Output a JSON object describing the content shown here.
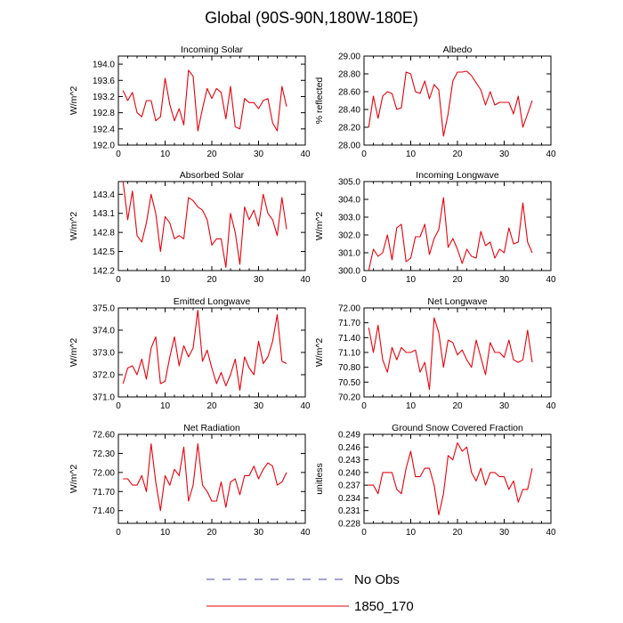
{
  "figure": {
    "title": "Global (90S-90N,180W-180E)",
    "line_color": "#e8000b",
    "obs_color": "#4a4aa8"
  },
  "legend": {
    "entries": [
      {
        "label": "No Obs",
        "style": "dashed",
        "color": "#4a4aa8"
      },
      {
        "label": "1850_170",
        "style": "solid",
        "color": "#e8000b"
      }
    ]
  },
  "chart_data": [
    {
      "type": "line",
      "title": "Incoming Solar",
      "ylabel": "W/m^2",
      "xlim": [
        0,
        40
      ],
      "xticks": [
        0,
        10,
        20,
        30,
        40
      ],
      "ylim": [
        192.0,
        194.2
      ],
      "yticks": [
        "192.0",
        "192.4",
        "192.8",
        "193.2",
        "193.6",
        "194.0"
      ],
      "series": [
        {
          "name": "1850_170",
          "x": [
            1,
            2,
            3,
            4,
            5,
            6,
            7,
            8,
            9,
            10,
            11,
            12,
            13,
            14,
            15,
            16,
            17,
            18,
            19,
            20,
            21,
            22,
            23,
            24,
            25,
            26,
            27,
            28,
            29,
            30,
            31,
            32,
            33,
            34,
            35,
            36
          ],
          "y": [
            193.35,
            193.1,
            193.3,
            192.8,
            192.7,
            193.1,
            193.1,
            192.6,
            192.7,
            193.65,
            193.0,
            192.6,
            192.9,
            192.5,
            193.85,
            193.7,
            192.35,
            192.9,
            193.4,
            193.15,
            193.4,
            193.3,
            192.65,
            193.45,
            192.45,
            192.4,
            193.15,
            193.05,
            193.05,
            192.9,
            193.1,
            193.15,
            192.55,
            192.35,
            193.45,
            192.95
          ]
        }
      ]
    },
    {
      "type": "line",
      "title": "Albedo",
      "ylabel": "% reflected",
      "xlim": [
        0,
        40
      ],
      "xticks": [
        0,
        10,
        20,
        30,
        40
      ],
      "ylim": [
        28.0,
        29.0
      ],
      "yticks": [
        "28.00",
        "28.20",
        "28.40",
        "28.60",
        "28.80",
        "29.00"
      ],
      "series": [
        {
          "name": "1850_170",
          "x": [
            1,
            2,
            3,
            4,
            5,
            6,
            7,
            8,
            9,
            10,
            11,
            12,
            13,
            14,
            15,
            16,
            17,
            18,
            19,
            20,
            21,
            22,
            23,
            24,
            25,
            26,
            27,
            28,
            29,
            30,
            31,
            32,
            33,
            34,
            35,
            36
          ],
          "y": [
            28.2,
            28.55,
            28.3,
            28.55,
            28.6,
            28.58,
            28.4,
            28.42,
            28.82,
            28.8,
            28.6,
            28.58,
            28.72,
            28.52,
            28.68,
            28.62,
            28.1,
            28.35,
            28.72,
            28.82,
            28.82,
            28.83,
            28.78,
            28.7,
            28.62,
            28.45,
            28.6,
            28.45,
            28.48,
            28.48,
            28.48,
            28.35,
            28.55,
            28.2,
            28.35,
            28.5
          ]
        }
      ]
    },
    {
      "type": "line",
      "title": "Absorbed Solar",
      "ylabel": "W/m^2",
      "xlim": [
        0,
        40
      ],
      "xticks": [
        0,
        10,
        20,
        30,
        40
      ],
      "ylim": [
        142.2,
        143.6
      ],
      "yticks": [
        "142.2",
        "142.5",
        "142.8",
        "143.1",
        "143.4"
      ],
      "series": [
        {
          "name": "1850_170",
          "x": [
            1,
            2,
            3,
            4,
            5,
            6,
            7,
            8,
            9,
            10,
            11,
            12,
            13,
            14,
            15,
            16,
            17,
            18,
            19,
            20,
            21,
            22,
            23,
            24,
            25,
            26,
            27,
            28,
            29,
            30,
            31,
            32,
            33,
            34,
            35,
            36
          ],
          "y": [
            143.6,
            143.0,
            143.45,
            142.75,
            142.65,
            142.95,
            143.4,
            143.1,
            142.5,
            143.05,
            142.95,
            142.7,
            142.75,
            142.7,
            143.35,
            143.3,
            143.2,
            143.15,
            143.0,
            142.6,
            142.7,
            142.7,
            142.25,
            143.1,
            142.8,
            142.3,
            143.2,
            143.0,
            143.15,
            142.9,
            143.4,
            143.1,
            143.0,
            142.75,
            143.35,
            142.85
          ]
        }
      ]
    },
    {
      "type": "line",
      "title": "Incoming Longwave",
      "ylabel": "W/m^2",
      "xlim": [
        0,
        40
      ],
      "xticks": [
        0,
        10,
        20,
        30,
        40
      ],
      "ylim": [
        300.0,
        305.0
      ],
      "yticks": [
        "300.0",
        "301.0",
        "302.0",
        "303.0",
        "304.0",
        "305.0"
      ],
      "series": [
        {
          "name": "1850_170",
          "x": [
            1,
            2,
            3,
            4,
            5,
            6,
            7,
            8,
            9,
            10,
            11,
            12,
            13,
            14,
            15,
            16,
            17,
            18,
            19,
            20,
            21,
            22,
            23,
            24,
            25,
            26,
            27,
            28,
            29,
            30,
            31,
            32,
            33,
            34,
            35,
            36
          ],
          "y": [
            300.0,
            301.2,
            300.8,
            301.0,
            302.0,
            300.6,
            302.4,
            302.6,
            300.5,
            300.7,
            301.9,
            301.9,
            302.6,
            300.9,
            301.8,
            302.3,
            304.1,
            301.3,
            301.8,
            301.2,
            300.4,
            301.2,
            300.8,
            300.7,
            302.2,
            301.4,
            301.6,
            300.7,
            301.2,
            301.0,
            302.4,
            301.5,
            301.6,
            303.8,
            301.6,
            301.0
          ]
        }
      ]
    },
    {
      "type": "line",
      "title": "Emitted Longwave",
      "ylabel": "W/m^2",
      "xlim": [
        0,
        40
      ],
      "xticks": [
        0,
        10,
        20,
        30,
        40
      ],
      "ylim": [
        371.0,
        375.0
      ],
      "yticks": [
        "371.0",
        "372.0",
        "373.0",
        "374.0",
        "375.0"
      ],
      "series": [
        {
          "name": "1850_170",
          "x": [
            1,
            2,
            3,
            4,
            5,
            6,
            7,
            8,
            9,
            10,
            11,
            12,
            13,
            14,
            15,
            16,
            17,
            18,
            19,
            20,
            21,
            22,
            23,
            24,
            25,
            26,
            27,
            28,
            29,
            30,
            31,
            32,
            33,
            34,
            35,
            36
          ],
          "y": [
            371.6,
            372.3,
            372.4,
            372.0,
            372.7,
            371.8,
            373.2,
            373.7,
            371.6,
            371.7,
            372.8,
            373.7,
            372.4,
            373.3,
            372.8,
            373.2,
            374.9,
            372.6,
            373.1,
            372.3,
            371.6,
            372.1,
            371.5,
            372.0,
            372.7,
            371.3,
            372.8,
            372.3,
            372.0,
            373.5,
            372.5,
            372.8,
            373.5,
            374.7,
            372.6,
            372.5
          ]
        }
      ]
    },
    {
      "type": "line",
      "title": "Net Longwave",
      "ylabel": "W/m^2",
      "xlim": [
        0,
        40
      ],
      "xticks": [
        0,
        10,
        20,
        30,
        40
      ],
      "ylim": [
        70.2,
        72.0
      ],
      "yticks": [
        "70.20",
        "70.50",
        "70.80",
        "71.10",
        "71.40",
        "71.70",
        "72.00"
      ],
      "series": [
        {
          "name": "1850_170",
          "x": [
            1,
            2,
            3,
            4,
            5,
            6,
            7,
            8,
            9,
            10,
            11,
            12,
            13,
            14,
            15,
            16,
            17,
            18,
            19,
            20,
            21,
            22,
            23,
            24,
            25,
            26,
            27,
            28,
            29,
            30,
            31,
            32,
            33,
            34,
            35,
            36
          ],
          "y": [
            71.6,
            71.1,
            71.65,
            70.95,
            70.7,
            71.2,
            70.95,
            71.2,
            71.1,
            71.1,
            71.15,
            70.7,
            70.9,
            70.35,
            71.8,
            71.5,
            70.8,
            71.35,
            71.3,
            71.05,
            71.15,
            70.95,
            70.8,
            71.35,
            71.0,
            70.65,
            71.3,
            71.1,
            71.1,
            71.0,
            71.35,
            70.95,
            70.9,
            70.95,
            71.55,
            70.9
          ]
        }
      ]
    },
    {
      "type": "line",
      "title": "Net Radiation",
      "ylabel": "W/m^2",
      "xlim": [
        0,
        40
      ],
      "xticks": [
        0,
        10,
        20,
        30,
        40
      ],
      "ylim": [
        71.2,
        72.6
      ],
      "yticks": [
        "71.40",
        "71.70",
        "72.00",
        "72.30",
        "72.60"
      ],
      "series": [
        {
          "name": "1850_170",
          "x": [
            1,
            2,
            3,
            4,
            5,
            6,
            7,
            8,
            9,
            10,
            11,
            12,
            13,
            14,
            15,
            16,
            17,
            18,
            19,
            20,
            21,
            22,
            23,
            24,
            25,
            26,
            27,
            28,
            29,
            30,
            31,
            32,
            33,
            34,
            35,
            36
          ],
          "y": [
            71.9,
            71.9,
            71.8,
            71.8,
            71.95,
            71.7,
            72.45,
            71.85,
            71.4,
            71.95,
            71.8,
            72.05,
            71.95,
            72.4,
            71.55,
            71.8,
            72.45,
            71.8,
            71.7,
            71.55,
            71.55,
            71.85,
            71.45,
            71.85,
            71.9,
            71.65,
            71.95,
            71.95,
            72.1,
            71.9,
            72.05,
            72.15,
            72.1,
            71.8,
            71.85,
            72.0
          ]
        }
      ]
    },
    {
      "type": "line",
      "title": "Ground Snow Covered Fraction",
      "ylabel": "unitless",
      "xlim": [
        0,
        40
      ],
      "xticks": [
        0,
        10,
        20,
        30,
        40
      ],
      "ylim": [
        0.228,
        0.249
      ],
      "yticks": [
        "0.228",
        "0.231",
        "0.234",
        "0.237",
        "0.240",
        "0.243",
        "0.246",
        "0.249"
      ],
      "series": [
        {
          "name": "1850_170",
          "x": [
            1,
            2,
            3,
            4,
            5,
            6,
            7,
            8,
            9,
            10,
            11,
            12,
            13,
            14,
            15,
            16,
            17,
            18,
            19,
            20,
            21,
            22,
            23,
            24,
            25,
            26,
            27,
            28,
            29,
            30,
            31,
            32,
            33,
            34,
            35,
            36
          ],
          "y": [
            0.237,
            0.237,
            0.235,
            0.24,
            0.24,
            0.24,
            0.236,
            0.235,
            0.241,
            0.245,
            0.239,
            0.239,
            0.241,
            0.241,
            0.237,
            0.23,
            0.235,
            0.244,
            0.243,
            0.247,
            0.245,
            0.246,
            0.24,
            0.238,
            0.241,
            0.237,
            0.24,
            0.24,
            0.239,
            0.239,
            0.236,
            0.238,
            0.233,
            0.236,
            0.236,
            0.241
          ]
        }
      ]
    }
  ]
}
